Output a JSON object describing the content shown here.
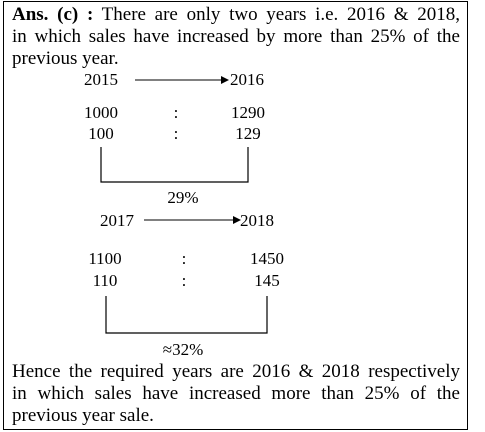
{
  "answer": {
    "lines": [
      {
        "label": "Ans. (c) :",
        "text": "There are only two years i.e. 2016 & 2018,"
      },
      {
        "text": "in which sales have increased by more than 25% of the"
      },
      {
        "text": "previous year."
      }
    ]
  },
  "block1": {
    "from_year": "2015",
    "to_year": "2016",
    "row1": {
      "left": "1000",
      "sep": ":",
      "right": "1290"
    },
    "row2": {
      "left": "100",
      "sep": ":",
      "right": "129"
    },
    "result": "29%"
  },
  "block2": {
    "from_year": "2017",
    "to_year": "2018",
    "row1": {
      "left": "1100",
      "sep": ":",
      "right": "1450"
    },
    "row2": {
      "left": "110",
      "sep": ":",
      "right": "145"
    },
    "result": "≈32%"
  },
  "conclusion": {
    "lines": [
      "Hence the required years are 2016 & 2018 respectively",
      "in which sales have increased more than 25% of the",
      "previous year sale."
    ]
  }
}
